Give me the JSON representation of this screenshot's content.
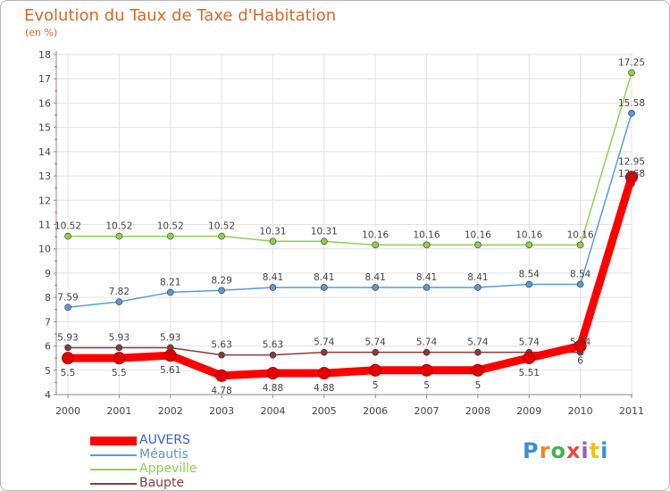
{
  "title": "Evolution du Taux de Taxe d'Habitation",
  "unit": "(en %)",
  "logo": {
    "text": "Proxiti",
    "letters": [
      "P",
      "r",
      "o",
      "x",
      "i",
      "t",
      "i"
    ],
    "colors": [
      "#3a8fd8",
      "#e8872a",
      "#4caf50",
      "#e84c3d",
      "#9b59b6",
      "#f1c40f",
      "#3a8fd8"
    ]
  },
  "colors": {
    "title": "#d4692a",
    "axis": "#8a8a8a",
    "grid": "#e3e3e3",
    "tick_red": "#e06060",
    "label": "#444444"
  },
  "chart_data": {
    "type": "line",
    "title": "Evolution du Taux de Taxe d'Habitation",
    "ylabel": "(en %)",
    "xlabel": "",
    "ylim": [
      4,
      18
    ],
    "yticks": [
      4,
      5,
      6,
      7,
      8,
      9,
      10,
      11,
      12,
      13,
      14,
      15,
      16,
      17,
      18
    ],
    "grid": true,
    "legend_position": "bottom-left",
    "categories": [
      "2000",
      "2001",
      "2002",
      "2003",
      "2004",
      "2005",
      "2006",
      "2007",
      "2008",
      "2009",
      "2010",
      "2011"
    ],
    "series": [
      {
        "name": "AUVERS",
        "color": "#ff0000",
        "legend_color": "#3b5bd6",
        "thick": true,
        "values": [
          5.5,
          5.5,
          5.61,
          4.78,
          4.88,
          4.88,
          5,
          5,
          5,
          5.51,
          6,
          12.95
        ],
        "labels": [
          "5.5",
          "5.5",
          "5.61",
          "4.78",
          "4.88",
          "4.88",
          "5",
          "5",
          "5",
          "5.51",
          "6",
          "12.95"
        ]
      },
      {
        "name": "Méautis",
        "color": "#5a9ad6",
        "legend_color": "#5a9ad6",
        "thick": false,
        "values": [
          7.59,
          7.82,
          8.21,
          8.29,
          8.41,
          8.41,
          8.41,
          8.41,
          8.41,
          8.54,
          8.54,
          15.58
        ],
        "labels": [
          "7.59",
          "7.82",
          "8.21",
          "8.29",
          "8.41",
          "8.41",
          "8.41",
          "8.41",
          "8.41",
          "8.54",
          "8.54",
          "15.58"
        ]
      },
      {
        "name": "Appeville",
        "color": "#8fd14f",
        "legend_color": "#8fd14f",
        "thick": false,
        "values": [
          10.52,
          10.52,
          10.52,
          10.52,
          10.31,
          10.31,
          10.16,
          10.16,
          10.16,
          10.16,
          10.16,
          17.25
        ],
        "labels": [
          "10.52",
          "10.52",
          "10.52",
          "10.52",
          "10.31",
          "10.31",
          "10.16",
          "10.16",
          "10.16",
          "10.16",
          "10.16",
          "17.25"
        ]
      },
      {
        "name": "Baupte",
        "color": "#8b3a3a",
        "legend_color": "#8b3a3a",
        "thick": false,
        "values": [
          5.93,
          5.93,
          5.93,
          5.63,
          5.63,
          5.74,
          5.74,
          5.74,
          5.74,
          5.74,
          5.74,
          12.68
        ],
        "labels": [
          "5.93",
          "5.93",
          "5.93",
          "5.63",
          "5.63",
          "5.74",
          "5.74",
          "5.74",
          "5.74",
          "5.74",
          "5.74",
          "12.68"
        ]
      }
    ]
  }
}
